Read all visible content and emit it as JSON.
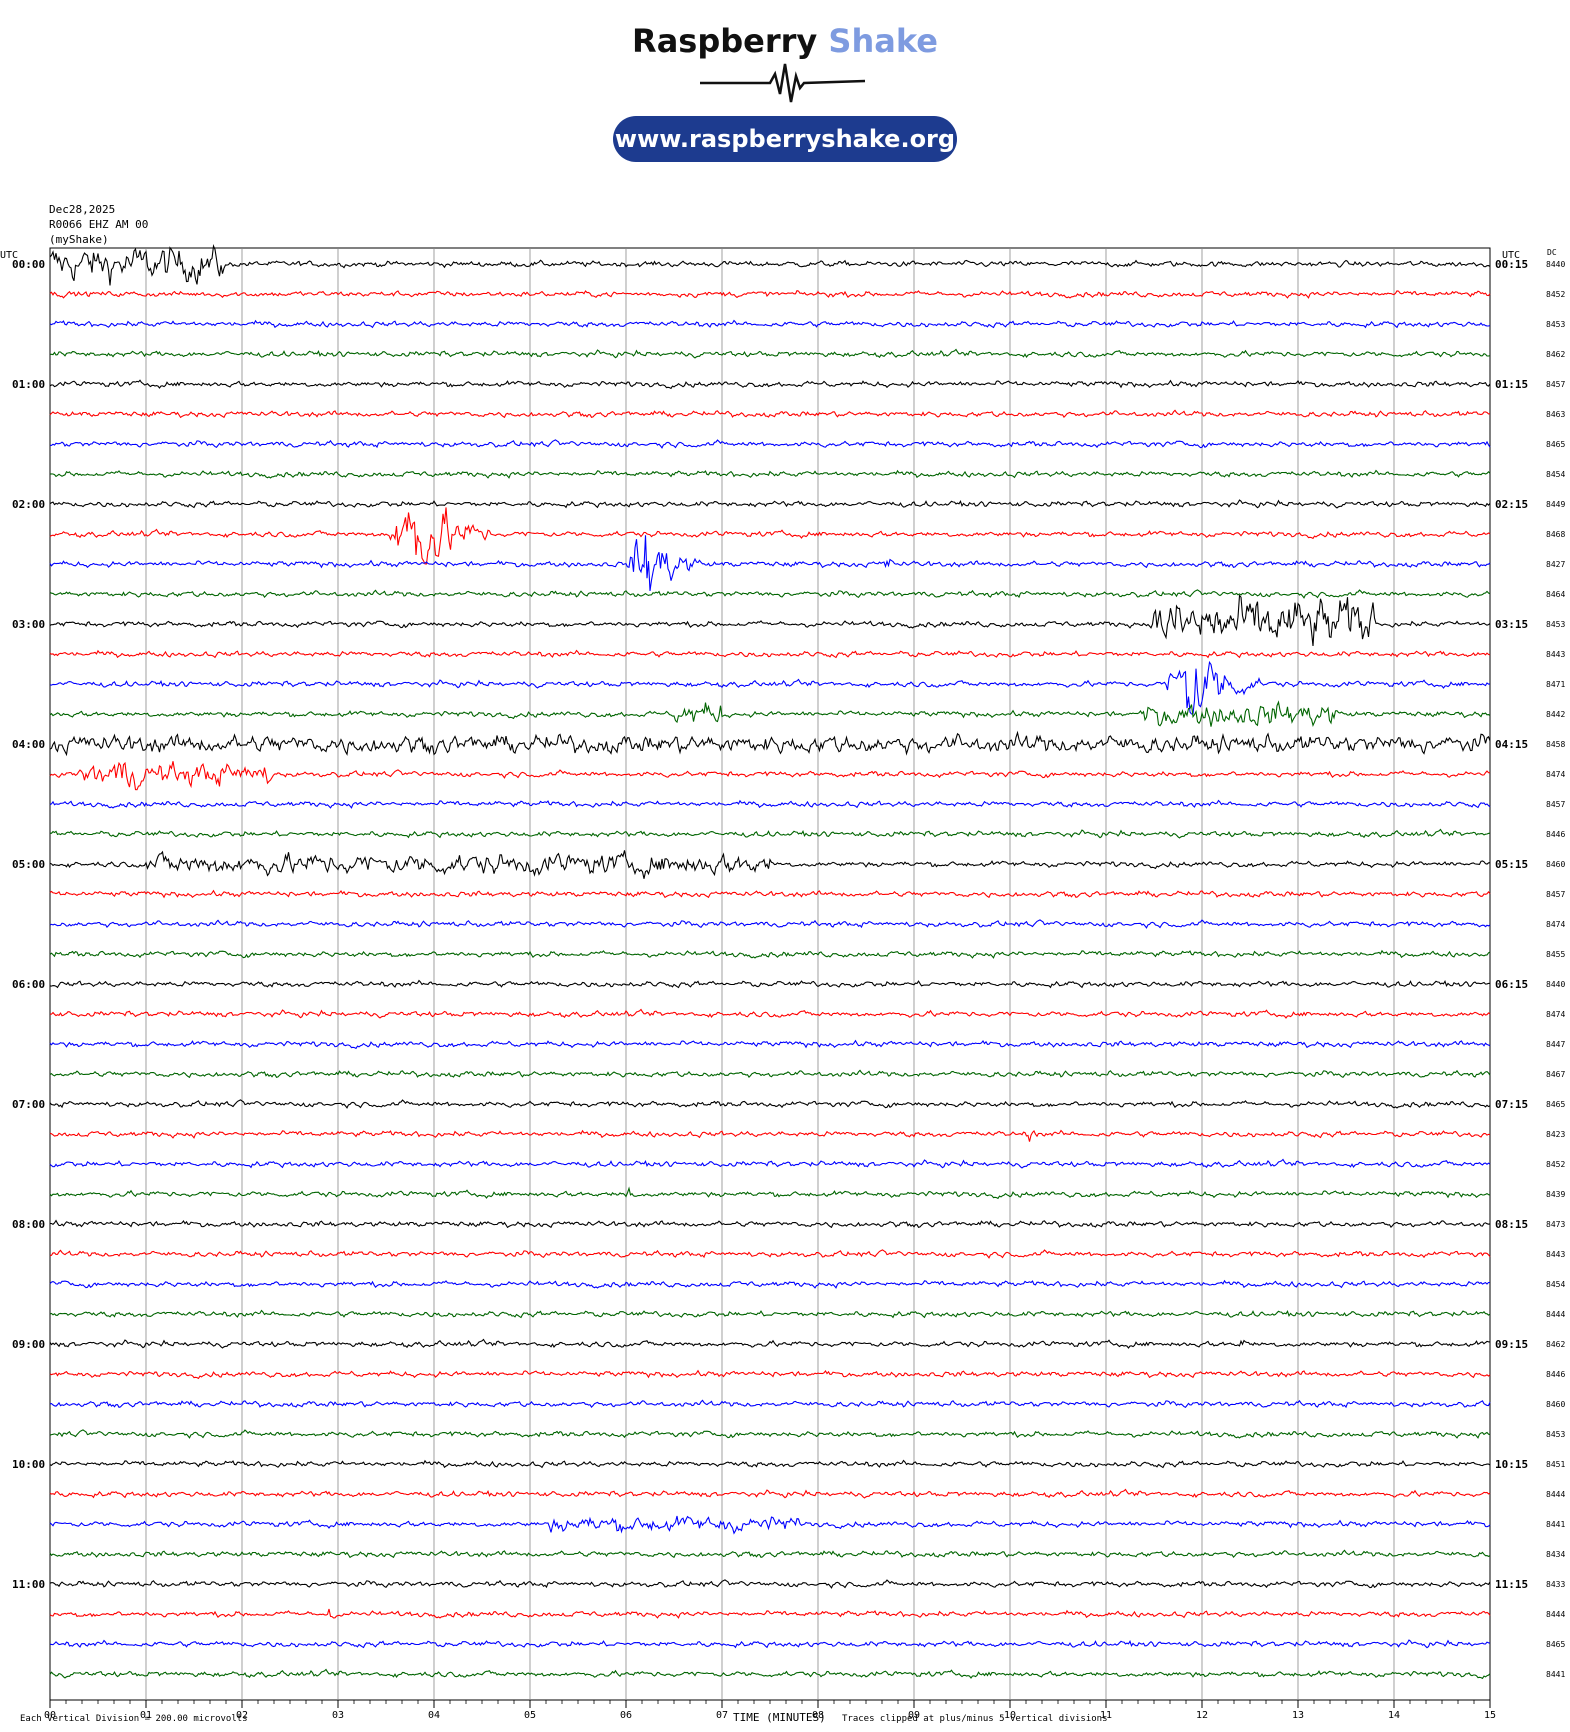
{
  "brand": {
    "name_part1": "Raspberry",
    "name_part2": "Shake",
    "website": "www.raspberryshake.org"
  },
  "header": {
    "date": "Dec28,2025",
    "station": "R0066 EHZ AM 00",
    "source": "(myShake)"
  },
  "axis": {
    "left_label": "UTC",
    "right_label": "UTC",
    "dc_label": "DC",
    "x_title": "TIME (MINUTES)",
    "scale_note": "Each Vertical Division = 200.00 microvolts",
    "clip_note": "Traces clipped at plus/minus 5 vertical divisions"
  },
  "colors": {
    "cycle": [
      "#000000",
      "#ff0000",
      "#0000ff",
      "#006400"
    ],
    "brand_blue": "#1d3b8f",
    "brand_accent": "#7e9be0",
    "grid": "#888888"
  },
  "chart_data": {
    "type": "line",
    "x_ticks": [
      "00",
      "01",
      "02",
      "03",
      "04",
      "05",
      "06",
      "07",
      "08",
      "09",
      "10",
      "11",
      "12",
      "13",
      "14",
      "15"
    ],
    "xlim": [
      0,
      15
    ],
    "row_labels_left": [
      "00:00",
      "01:00",
      "02:00",
      "03:00",
      "04:00",
      "05:00",
      "06:00",
      "07:00",
      "08:00",
      "09:00",
      "10:00",
      "11:00"
    ],
    "row_labels_right": [
      "00:15",
      "01:15",
      "02:15",
      "03:15",
      "04:15",
      "05:15",
      "06:15",
      "07:15",
      "08:15",
      "09:15",
      "10:15",
      "11:15"
    ],
    "dc_values": [
      8440,
      8452,
      8453,
      8462,
      8457,
      8463,
      8465,
      8454,
      8449,
      8468,
      8427,
      8464,
      8453,
      8443,
      8471,
      8442,
      8458,
      8474,
      8457,
      8446,
      8460,
      8457,
      8474,
      8455,
      8440,
      8474,
      8447,
      8467,
      8465,
      8423,
      8452,
      8439,
      8473,
      8443,
      8454,
      8444,
      8462,
      8446,
      8460,
      8453,
      8451,
      8444,
      8441,
      8434,
      8433,
      8444,
      8465,
      8441
    ],
    "trace_count": 48,
    "minutes_per_trace": 15,
    "events": [
      {
        "trace": 0,
        "start": 0.0,
        "end": 1.8,
        "amp": 2.2,
        "kind": "burst"
      },
      {
        "trace": 9,
        "start": 3.5,
        "end": 4.6,
        "amp": 7.5,
        "kind": "quake"
      },
      {
        "trace": 10,
        "start": 6.0,
        "end": 6.8,
        "amp": 6.0,
        "kind": "quake"
      },
      {
        "trace": 12,
        "start": 11.5,
        "end": 13.8,
        "amp": 3.2,
        "kind": "burst"
      },
      {
        "trace": 14,
        "start": 11.6,
        "end": 12.6,
        "amp": 7.5,
        "kind": "quake"
      },
      {
        "trace": 15,
        "start": 6.5,
        "end": 7.0,
        "amp": 1.5,
        "kind": "burst"
      },
      {
        "trace": 15,
        "start": 11.4,
        "end": 13.4,
        "amp": 1.5,
        "kind": "burst"
      },
      {
        "trace": 16,
        "start": 0.0,
        "end": 15.0,
        "amp": 1.1,
        "kind": "burst"
      },
      {
        "trace": 17,
        "start": 0.3,
        "end": 2.3,
        "amp": 1.4,
        "kind": "burst"
      },
      {
        "trace": 17,
        "start": 0.6,
        "end": 0.9,
        "amp": 2.2,
        "kind": "burst"
      },
      {
        "trace": 20,
        "start": 1.0,
        "end": 7.5,
        "amp": 1.3,
        "kind": "burst"
      },
      {
        "trace": 42,
        "start": 5.2,
        "end": 7.8,
        "amp": 1.0,
        "kind": "burst"
      },
      {
        "trace": 45,
        "start": 2.9,
        "end": 2.95,
        "amp": 3.0,
        "kind": "spike"
      },
      {
        "trace": 31,
        "start": 6.0,
        "end": 6.05,
        "amp": 3.0,
        "kind": "spike"
      },
      {
        "trace": 29,
        "start": 10.2,
        "end": 10.25,
        "amp": 1.8,
        "kind": "spike"
      },
      {
        "trace": 36,
        "start": 12.4,
        "end": 12.45,
        "amp": 1.6,
        "kind": "spike"
      },
      {
        "trace": 10,
        "start": 8.7,
        "end": 8.75,
        "amp": 1.3,
        "kind": "spike"
      }
    ]
  }
}
